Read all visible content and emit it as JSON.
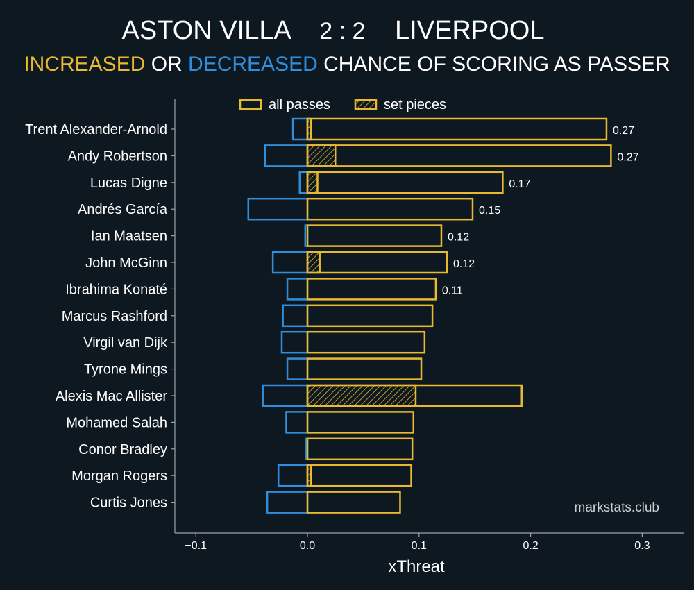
{
  "title": {
    "team_home": "ASTON VILLA",
    "score": "2 : 2",
    "team_away": "LIVERPOOL"
  },
  "subtitle": {
    "increased": "INCREASED",
    "or": " OR ",
    "decreased": "DECREASED",
    "rest": " CHANCE OF SCORING AS PASSER"
  },
  "legend": {
    "all_passes": "all passes",
    "set_pieces": "set pieces"
  },
  "watermark": "markstats.club",
  "colors": {
    "background": "#0e1821",
    "positive": "#e8b931",
    "negative": "#2f8fdc",
    "text": "#ffffff",
    "axis": "#9aa3ab"
  },
  "chart_data": {
    "type": "bar",
    "orientation": "horizontal",
    "xlabel": "xThreat",
    "xlim": [
      -0.12,
      0.335
    ],
    "xticks": [
      -0.1,
      0.0,
      0.1,
      0.2,
      0.3
    ],
    "xtick_labels": [
      "−0.1",
      "0.0",
      "0.1",
      "0.2",
      "0.3"
    ],
    "categories": [
      "Trent Alexander-Arnold",
      "Andy Robertson",
      "Lucas Digne",
      "Andrés García",
      "Ian Maatsen",
      "John McGinn",
      "Ibrahima Konaté",
      "Marcus Rashford",
      "Virgil van Dijk",
      "Tyrone Mings",
      "Alexis Mac Allister",
      "Mohamed Salah",
      "Conor Bradley",
      "Morgan Rogers",
      "Curtis Jones"
    ],
    "series": [
      {
        "name": "all passes",
        "positive": [
          0.268,
          0.272,
          0.175,
          0.148,
          0.12,
          0.125,
          0.115,
          0.112,
          0.105,
          0.102,
          0.192,
          0.095,
          0.094,
          0.093,
          0.083
        ],
        "negative": [
          -0.013,
          -0.038,
          -0.007,
          -0.053,
          -0.002,
          -0.031,
          -0.018,
          -0.022,
          -0.023,
          -0.018,
          -0.04,
          -0.019,
          -0.001,
          -0.026,
          -0.036
        ]
      },
      {
        "name": "set pieces",
        "values": [
          0.003,
          0.025,
          0.009,
          0.0,
          0.0,
          0.011,
          0.0,
          0.0,
          0.0,
          0.0,
          0.097,
          0.0,
          0.0,
          0.003,
          0.0
        ]
      }
    ],
    "data_labels": [
      "0.27",
      "0.27",
      "0.17",
      "0.15",
      "0.12",
      "0.12",
      "0.11",
      "",
      "",
      "",
      "",
      "",
      "",
      "",
      ""
    ]
  }
}
